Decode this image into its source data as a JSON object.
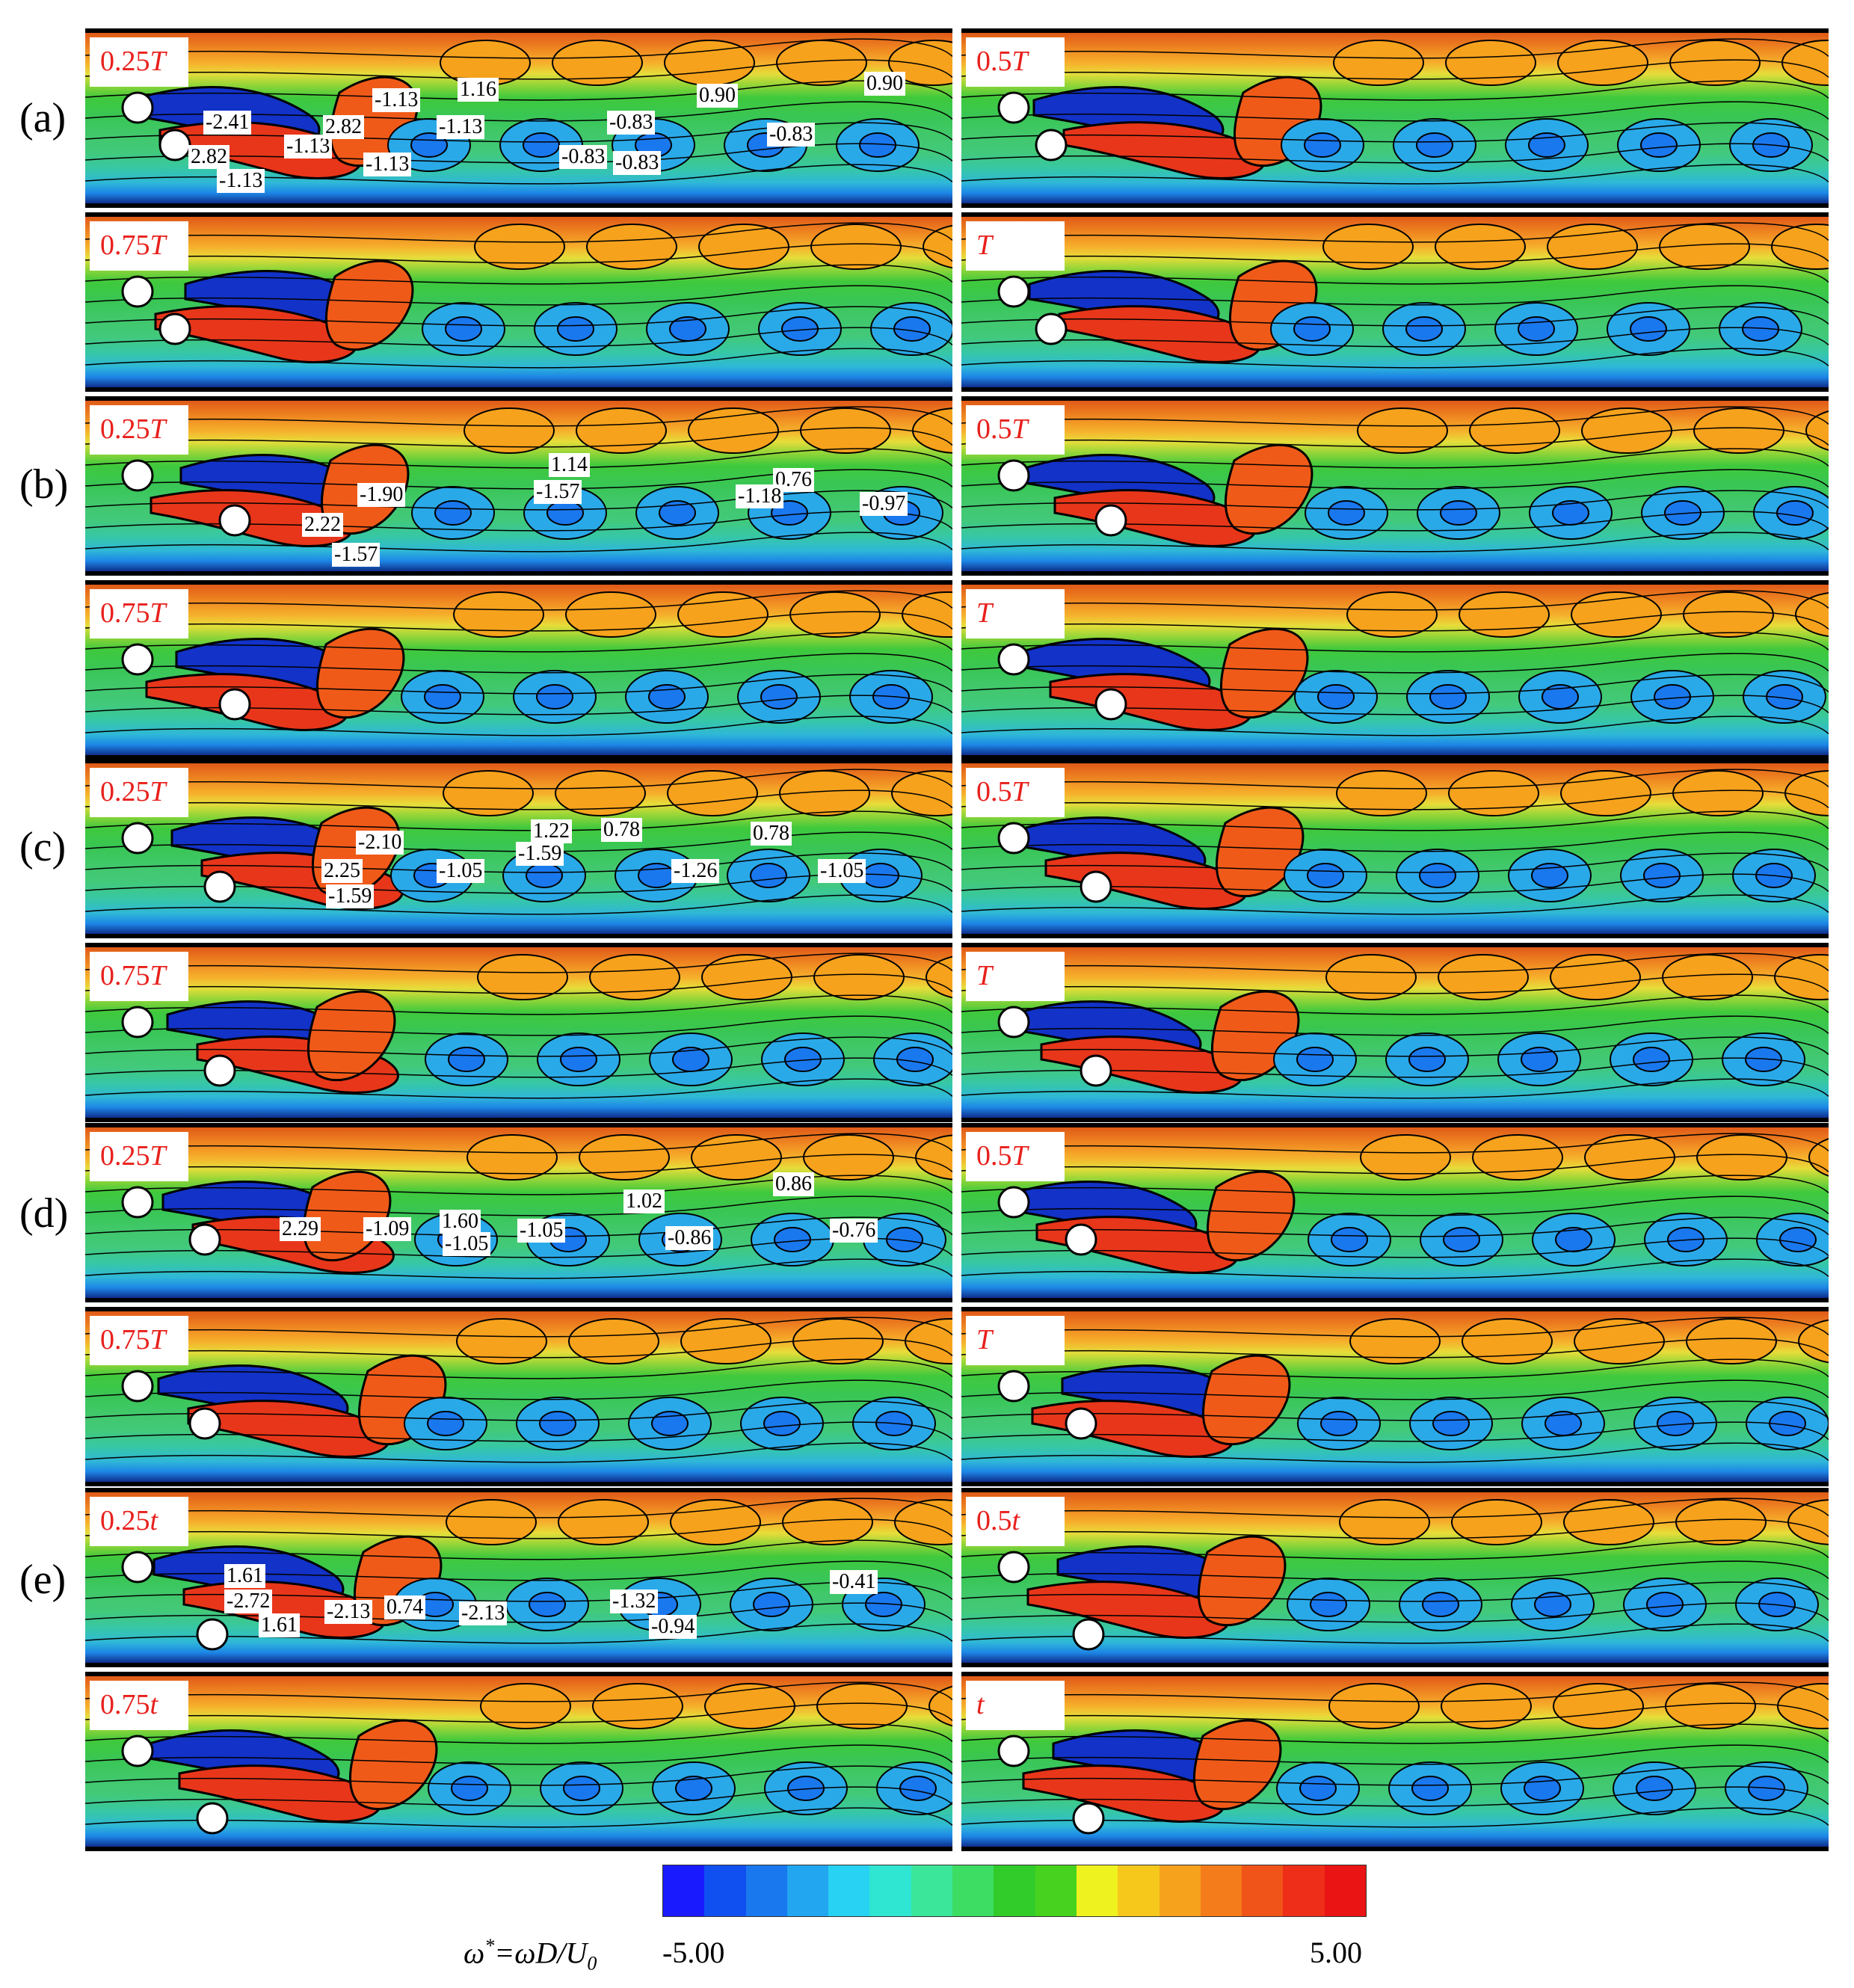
{
  "groups": [
    {
      "label": "(a)",
      "panels": [
        {
          "time": "0.25",
          "unit": "T",
          "labels": [
            "-2.41",
            "2.82",
            "-1.13",
            "-1.13",
            "2.82",
            "-1.13",
            "1.16",
            "-1.13",
            "-1.13",
            "-0.83",
            "-0.83",
            "-0.83",
            "0.90",
            "0.90",
            "-0.83"
          ]
        },
        {
          "time": "0.5",
          "unit": "T",
          "labels": []
        },
        {
          "time": "0.75",
          "unit": "T",
          "labels": []
        },
        {
          "time": "",
          "unit": "T",
          "labels": []
        }
      ]
    },
    {
      "label": "(b)",
      "panels": [
        {
          "time": "0.25",
          "unit": "T",
          "labels": [
            "1.14",
            "-1.90",
            "-1.57",
            "2.22",
            "-1.57",
            "0.76",
            "-1.18",
            "-0.97"
          ]
        },
        {
          "time": "0.5",
          "unit": "T",
          "labels": []
        },
        {
          "time": "0.75",
          "unit": "T",
          "labels": []
        },
        {
          "time": "",
          "unit": "T",
          "labels": []
        }
      ]
    },
    {
      "label": "(c)",
      "panels": [
        {
          "time": "0.25",
          "unit": "T",
          "labels": [
            "-2.10",
            "1.22",
            "0.78",
            "-1.59",
            "2.25",
            "-1.05",
            "-1.59",
            "0.78",
            "-1.26",
            "-1.05"
          ]
        },
        {
          "time": "0.5",
          "unit": "T",
          "labels": []
        },
        {
          "time": "0.75",
          "unit": "T",
          "labels": []
        },
        {
          "time": "",
          "unit": "T",
          "labels": []
        }
      ]
    },
    {
      "label": "(d)",
      "panels": [
        {
          "time": "0.25",
          "unit": "T",
          "labels": [
            "0.86",
            "1.02",
            "2.29",
            "-1.09",
            "1.60",
            "-1.05",
            "-1.05",
            "-0.86",
            "-0.76"
          ]
        },
        {
          "time": "0.5",
          "unit": "T",
          "labels": []
        },
        {
          "time": "0.75",
          "unit": "T",
          "labels": []
        },
        {
          "time": "",
          "unit": "T",
          "labels": []
        }
      ]
    },
    {
      "label": "(e)",
      "panels": [
        {
          "time": "0.25",
          "unit": "t",
          "labels": [
            "1.61",
            "-2.72",
            "-2.13",
            "0.74",
            "-2.13",
            "-1.32",
            "-0.94",
            "1.61",
            "-0.41"
          ]
        },
        {
          "time": "0.5",
          "unit": "t",
          "labels": []
        },
        {
          "time": "0.75",
          "unit": "t",
          "labels": []
        },
        {
          "time": "",
          "unit": "t",
          "labels": []
        }
      ]
    }
  ],
  "colorbar": {
    "min_label": "-5.00",
    "max_label": "5.00",
    "colors": [
      "#1a1aff",
      "#1050f0",
      "#1a78ee",
      "#22a6f0",
      "#28d2f2",
      "#2fe6d2",
      "#3be69a",
      "#3ddc62",
      "#31cc2a",
      "#46d21e",
      "#eef21e",
      "#f6c81c",
      "#f6a21c",
      "#f47c1a",
      "#f05418",
      "#ee2e18",
      "#ea1414"
    ],
    "formula_lhs": "ω",
    "formula_sup": "*",
    "formula_rhs": "=ωD/U",
    "formula_sub": "0"
  }
}
